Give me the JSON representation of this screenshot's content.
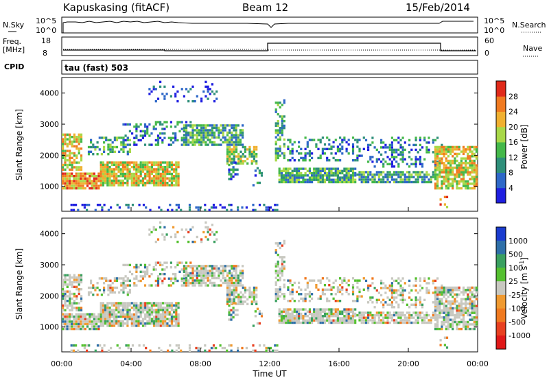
{
  "header": {
    "station": "Kapuskasing (fitACF)",
    "beam": "Beam 12",
    "date": "15/Feb/2014"
  },
  "strips": {
    "nsky_label": "N.Sky",
    "nsky_top": "10^5",
    "nsky_bottom": "10^0",
    "nsearch_label": "N.Search",
    "nsearch_top": "10^5",
    "nsearch_bottom": "10^0",
    "freq_label": "Freq.",
    "freq_unit": "[MHz]",
    "freq_top": "18",
    "freq_bottom": "8",
    "nave_label": "Nave",
    "nave_top": "60",
    "nave_bottom": "0",
    "cpid_label": "CPID",
    "cpid_value": "tau (fast) 503"
  },
  "chart_data": [
    {
      "type": "heatmap",
      "name": "power",
      "ylabel": "Slant Range [km]",
      "xlabel": "",
      "ylim": [
        200,
        4500
      ],
      "yticks": [
        "1000",
        "2000",
        "3000",
        "4000"
      ],
      "colorbar_label": "Power [dB]",
      "colorbar_ticks": [
        "4",
        "8",
        "12",
        "16",
        "20",
        "24",
        "28"
      ],
      "colors": [
        "#1f1fe0",
        "#2e68c8",
        "#2e8f7a",
        "#44b84a",
        "#a8d848",
        "#f0b030",
        "#f07a20",
        "#e02a1a"
      ]
    },
    {
      "type": "heatmap",
      "name": "velocity",
      "ylabel": "Slant Range [km]",
      "xlabel": "Time UT",
      "ylim": [
        200,
        4500
      ],
      "yticks": [
        "1000",
        "2000",
        "3000",
        "4000"
      ],
      "xticks": [
        "00:00",
        "04:00",
        "08:00",
        "12:00",
        "16:00",
        "20:00",
        "00:00"
      ],
      "colorbar_label": "Velocity [m s",
      "colorbar_label_sup": "-1",
      "colorbar_label_end": "]",
      "colorbar_ticks": [
        "1000",
        "500",
        "100",
        "25",
        "-25",
        "-100",
        "-500",
        "-1000"
      ],
      "colors": [
        "#1a3ccf",
        "#2e6fa8",
        "#3aa060",
        "#55c030",
        "#c8c8c0",
        "#f09a30",
        "#f07a20",
        "#e84020",
        "#e01818"
      ]
    }
  ]
}
